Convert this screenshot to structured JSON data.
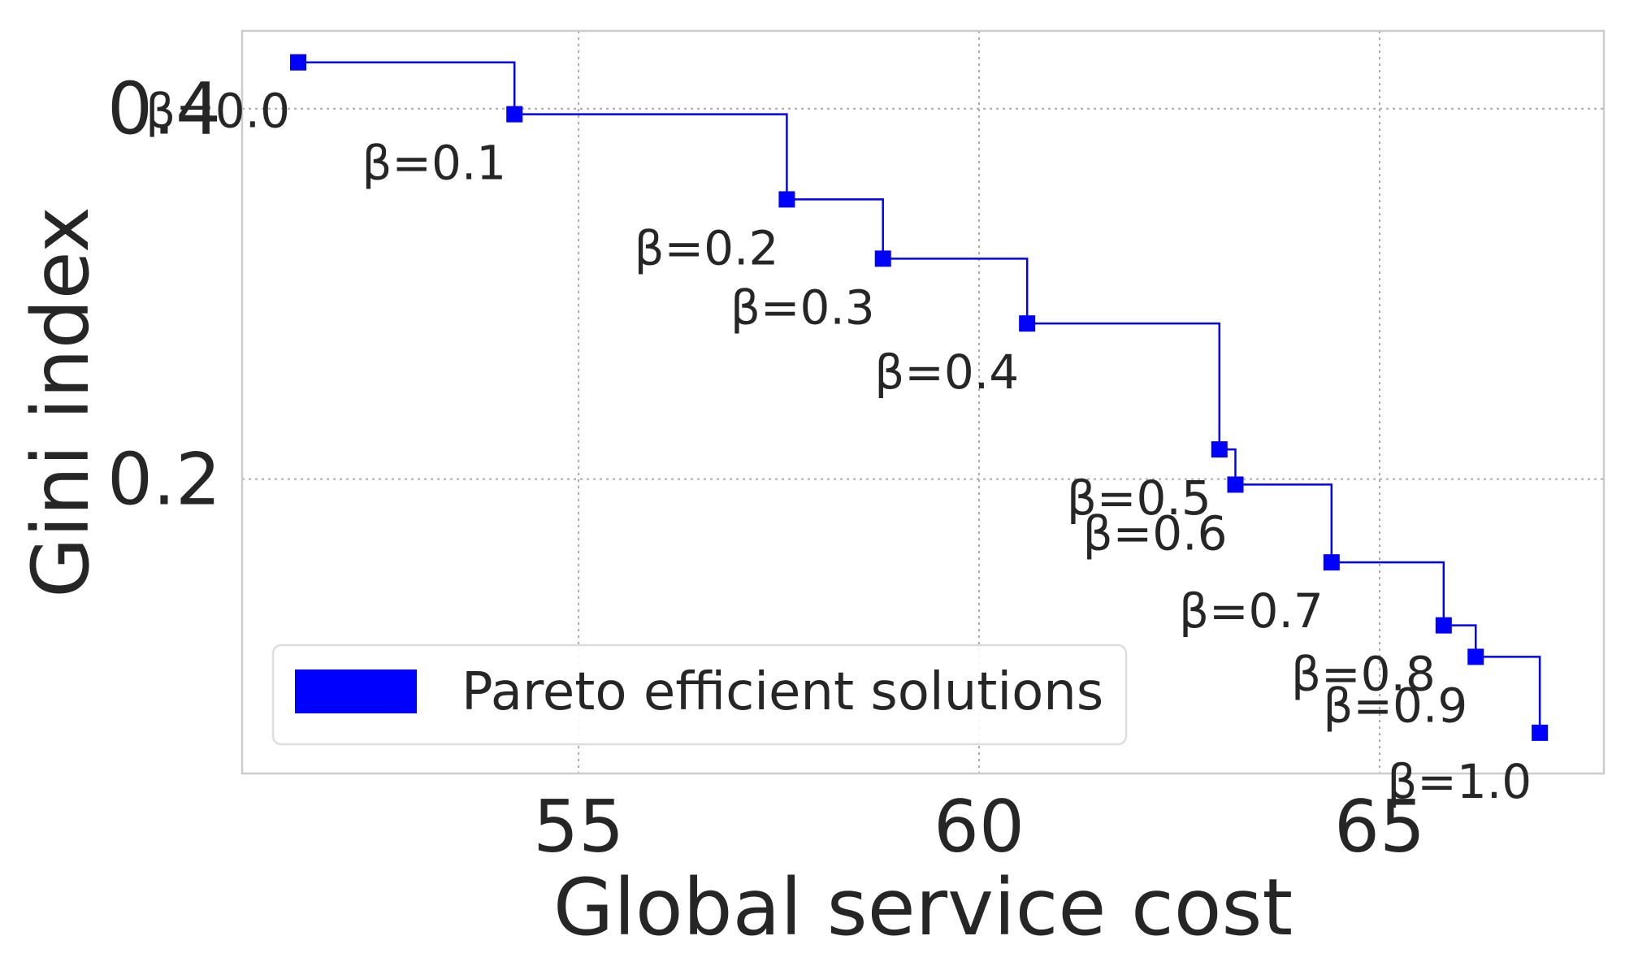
{
  "chart_data": {
    "type": "line",
    "step_style": "post",
    "title": "",
    "xlabel": "Global service cost",
    "ylabel": "Gini index",
    "xlim": [
      50.8,
      67.8
    ],
    "ylim": [
      0.041,
      0.442
    ],
    "xticks": [
      55,
      60,
      65
    ],
    "yticks": [
      0.2,
      0.4
    ],
    "grid": true,
    "legend_position": "lower-left",
    "series": [
      {
        "name": "Pareto efficient solutions",
        "color": "#0000FF",
        "marker": "square",
        "points": [
          {
            "x": 51.5,
            "y": 0.425,
            "label": "β=0.0"
          },
          {
            "x": 54.2,
            "y": 0.397,
            "label": "β=0.1"
          },
          {
            "x": 57.6,
            "y": 0.351,
            "label": "β=0.2"
          },
          {
            "x": 58.8,
            "y": 0.319,
            "label": "β=0.3"
          },
          {
            "x": 60.6,
            "y": 0.284,
            "label": "β=0.4"
          },
          {
            "x": 63.0,
            "y": 0.216,
            "label": "β=0.5"
          },
          {
            "x": 63.2,
            "y": 0.197,
            "label": "β=0.6"
          },
          {
            "x": 64.4,
            "y": 0.155,
            "label": "β=0.7"
          },
          {
            "x": 65.8,
            "y": 0.121,
            "label": "β=0.8"
          },
          {
            "x": 66.2,
            "y": 0.104,
            "label": "β=0.9"
          },
          {
            "x": 67.0,
            "y": 0.063,
            "label": "β=1.0"
          }
        ]
      }
    ]
  }
}
